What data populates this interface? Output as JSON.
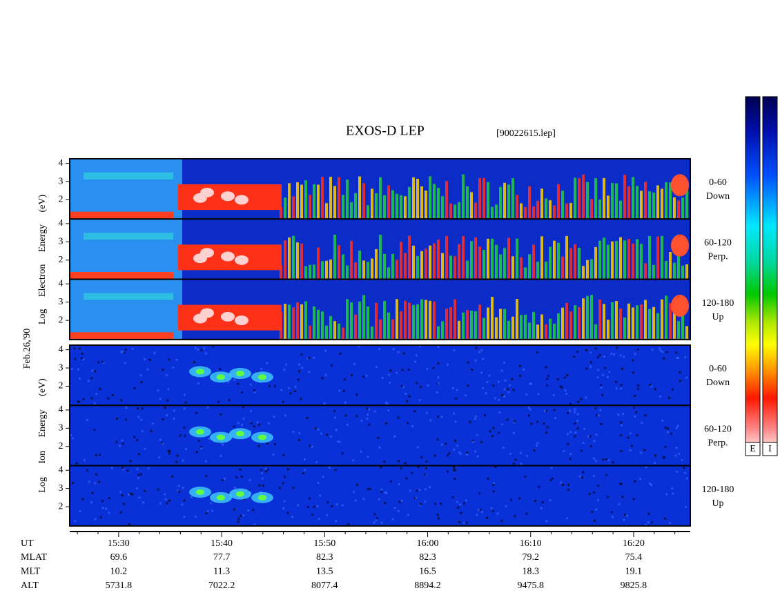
{
  "chart_data": {
    "type": "spectrogram",
    "title": "EXOS-D LEP",
    "file": "[90022615.lep]",
    "date": "Feb.26,'90",
    "groups": [
      {
        "ylabel": "Log Electron Energy (eV)",
        "panels": [
          {
            "label": [
              "0-60",
              "Down"
            ]
          },
          {
            "label": [
              "60-120",
              "Perp."
            ]
          },
          {
            "label": [
              "120-180",
              "Up"
            ]
          }
        ]
      },
      {
        "ylabel": "Log Ion Energy (eV)",
        "panels": [
          {
            "label": [
              "0-60",
              "Down"
            ]
          },
          {
            "label": [
              "60-120",
              "Perp."
            ]
          },
          {
            "label": [
              "120-180",
              "Up"
            ]
          }
        ]
      }
    ],
    "ylim": [
      0.95,
      4.25
    ],
    "yticks": [
      2,
      3,
      4
    ],
    "xlim": [
      925.25,
      985.5
    ],
    "xticks": [
      {
        "value": 930,
        "label": "15:30"
      },
      {
        "value": 940,
        "label": "15:40"
      },
      {
        "value": 950,
        "label": "15:50"
      },
      {
        "value": 960,
        "label": "16:00"
      },
      {
        "value": 970,
        "label": "16:10"
      },
      {
        "value": 980,
        "label": "16:20"
      }
    ],
    "xminorticks": [
      926,
      928,
      932,
      934,
      936,
      938,
      942,
      944,
      946,
      948,
      952,
      954,
      956,
      958,
      962,
      964,
      966,
      968,
      972,
      974,
      976,
      978,
      982,
      984
    ],
    "xlabel": "UT",
    "ephemeris": [
      {
        "name": "MLAT",
        "values": [
          69.6,
          77.7,
          82.3,
          82.3,
          79.2,
          75.4
        ]
      },
      {
        "name": "MLT",
        "values": [
          10.2,
          11.3,
          13.5,
          16.5,
          18.3,
          19.1
        ]
      },
      {
        "name": "ALT",
        "values": [
          5731.8,
          7022.2,
          8077.4,
          8894.2,
          9475.8,
          9825.8
        ]
      }
    ],
    "colorbar_labels": [
      "E",
      "I"
    ]
  }
}
